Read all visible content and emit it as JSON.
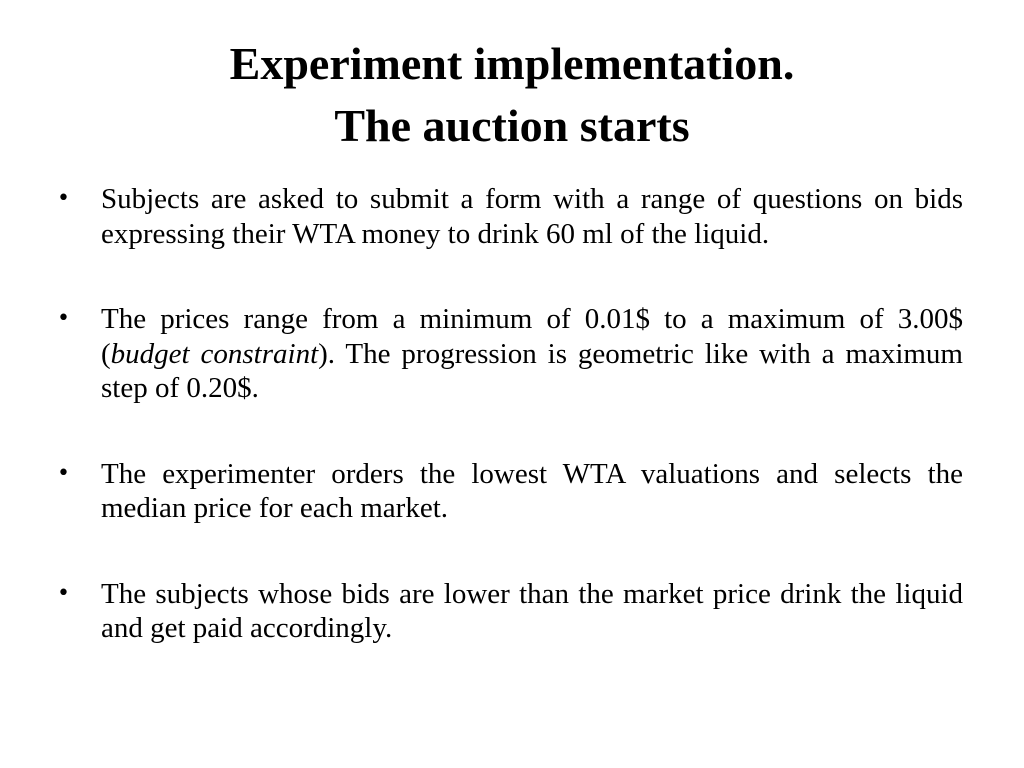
{
  "slide": {
    "title_line1": "Experiment implementation.",
    "title_line2": "The auction starts",
    "bullet_marker": "•",
    "bullets": [
      {
        "text": "Subjects are asked to submit a form with a range of questions on bids expressing their WTA money to drink 60 ml of the liquid."
      },
      {
        "text_before": "The prices range from a minimum of 0.01$ to a maximum of 3.00$ (",
        "text_italic": "budget constraint",
        "text_after": "). The progression is geometric like with a maximum step of 0.20$."
      },
      {
        "text": "The experimenter orders the lowest WTA valuations and selects the median price for each market."
      },
      {
        "text": "The subjects whose bids are lower than the market price drink the liquid and get paid accordingly."
      }
    ]
  }
}
